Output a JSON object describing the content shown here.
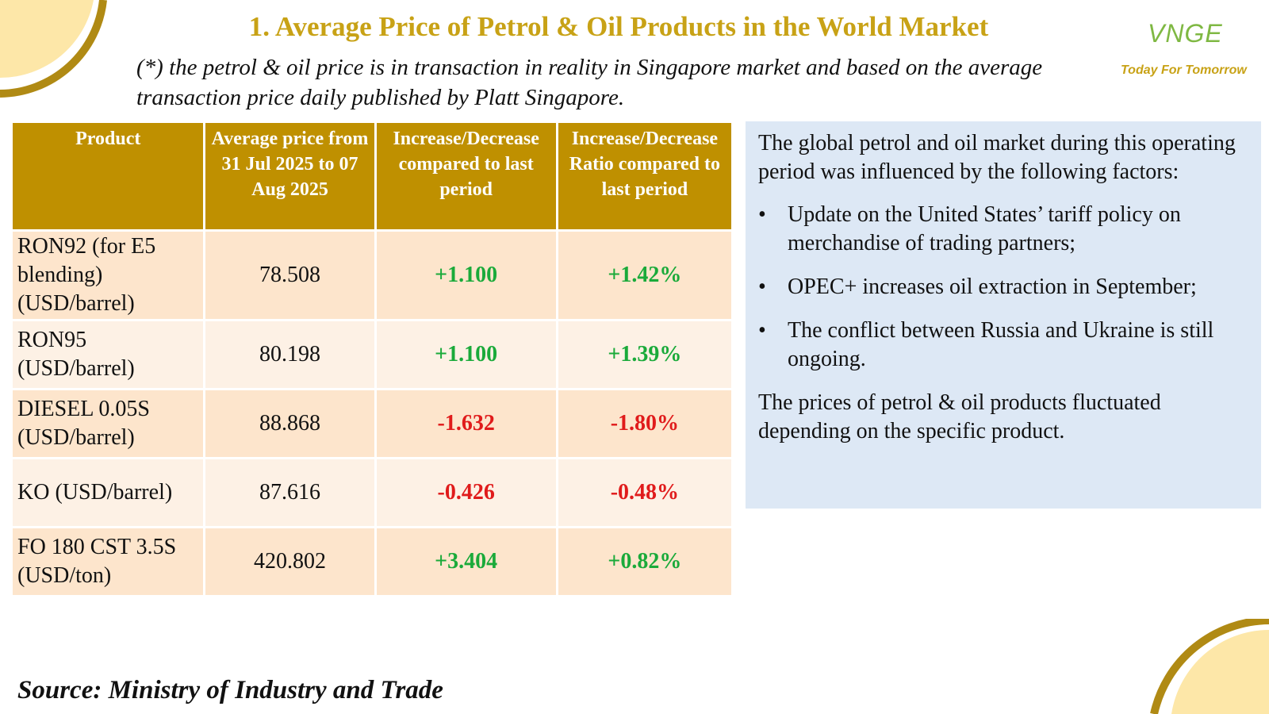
{
  "header": {
    "title": "1. Average Price of Petrol & Oil Products in the World Market",
    "subtitle": "(*) the petrol & oil price is in transaction in reality in Singapore market and based on the average transaction price daily published by Platt Singapore."
  },
  "logo": {
    "mark": "VNGE",
    "tagline": "Today For Tomorrow"
  },
  "table": {
    "headers": [
      "Product",
      "Average price from 31 Jul 2025 to 07 Aug 2025",
      "Increase/Decrease compared to last period",
      "Increase/Decrease Ratio compared to last period"
    ],
    "rows": [
      {
        "product": "RON92 (for E5 blending) (USD/barrel)",
        "avg": "78.508",
        "change": "+1.100",
        "ratio": "+1.42%",
        "trend": "up"
      },
      {
        "product": "RON95 (USD/barrel)",
        "avg": "80.198",
        "change": "+1.100",
        "ratio": "+1.39%",
        "trend": "up"
      },
      {
        "product": "DIESEL 0.05S (USD/barrel)",
        "avg": "88.868",
        "change": "-1.632",
        "ratio": "-1.80%",
        "trend": "down"
      },
      {
        "product": "KO (USD/barrel)",
        "avg": "87.616",
        "change": "-0.426",
        "ratio": "-0.48%",
        "trend": "down"
      },
      {
        "product": "FO 180 CST 3.5S (USD/ton)",
        "avg": "420.802",
        "change": "+3.404",
        "ratio": "+0.82%",
        "trend": "up"
      }
    ]
  },
  "panel": {
    "intro": "The global petrol and oil market during this operating period was influenced by the following factors:",
    "bullets": [
      "Update on the United States’ tariff policy on merchandise of trading partners;",
      "OPEC+ increases oil extraction in September;",
      "The conflict between Russia and Ukraine is still ongoing."
    ],
    "bullet_glyph": "•",
    "closing": "The prices of petrol & oil products fluctuated depending on the specific product."
  },
  "footer": {
    "source": "Source: Ministry of Industry and Trade"
  },
  "colors": {
    "title_gold": "#c8a216",
    "header_bg": "#bf9000",
    "row_odd": "#fde5cc",
    "row_even": "#fdf1e5",
    "panel_bg": "#dde8f5",
    "increase": "#1aaa3a",
    "decrease": "#e01b1b"
  }
}
